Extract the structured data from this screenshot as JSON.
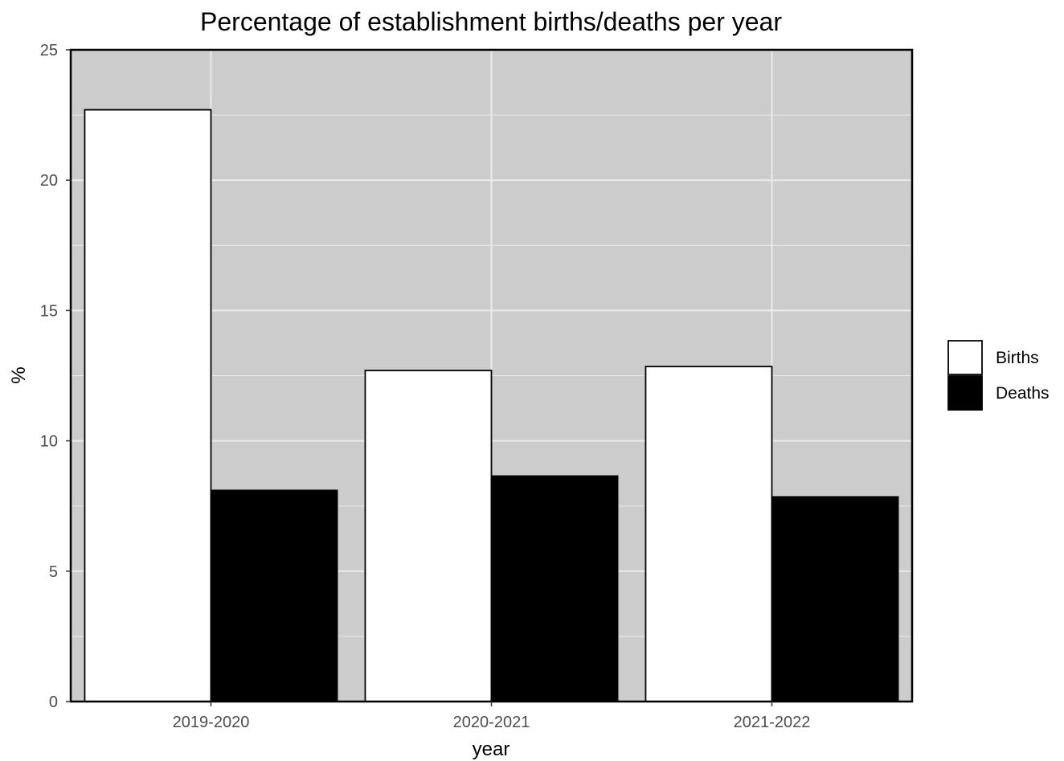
{
  "chart_data": {
    "type": "bar",
    "title": "Percentage of establishment births/deaths per year",
    "xlabel": "year",
    "ylabel": "%",
    "categories": [
      "2019-2020",
      "2020-2021",
      "2021-2022"
    ],
    "series": [
      {
        "name": "Births",
        "values": [
          22.7,
          12.7,
          12.85
        ],
        "color": "#ffffff"
      },
      {
        "name": "Deaths",
        "values": [
          8.1,
          8.65,
          7.85
        ],
        "color": "#000000"
      }
    ],
    "ylim": [
      0,
      25
    ],
    "yticks": [
      "0",
      "5",
      "10",
      "15",
      "20",
      "25"
    ],
    "grid": true,
    "panel_background": "#cccccc",
    "legend_position": "right"
  }
}
